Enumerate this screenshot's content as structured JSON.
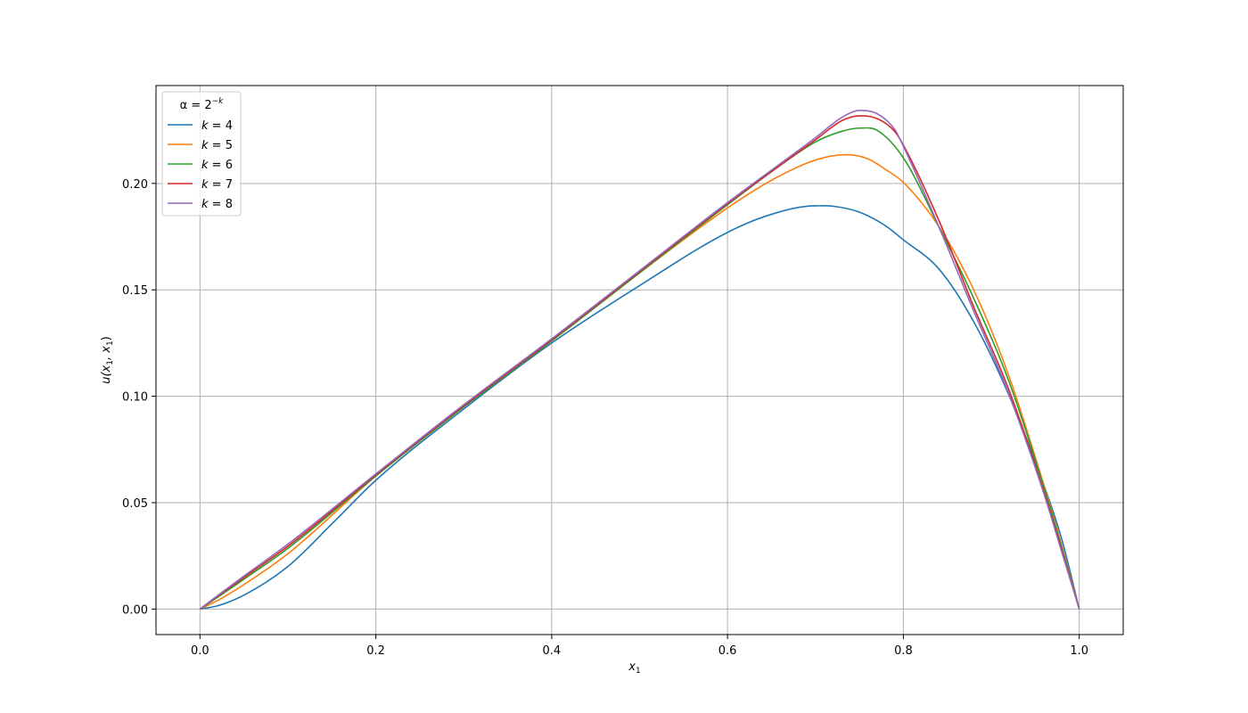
{
  "chart_data": {
    "type": "line",
    "title": "",
    "xlabel": "x",
    "xlabel_sub": "1",
    "ylabel": "u(x",
    "ylabel_sub1": "1",
    "ylabel_mid": ", x",
    "ylabel_sub2": "1",
    "ylabel_end": ")",
    "xlim": [
      -0.05,
      1.05
    ],
    "ylim": [
      -0.012,
      0.246
    ],
    "xticks": [
      0.0,
      0.2,
      0.4,
      0.6,
      0.8,
      1.0
    ],
    "xtick_labels": [
      "0.0",
      "0.2",
      "0.4",
      "0.6",
      "0.8",
      "1.0"
    ],
    "yticks": [
      0.0,
      0.05,
      0.1,
      0.15,
      0.2
    ],
    "ytick_labels": [
      "0.00",
      "0.05",
      "0.10",
      "0.15",
      "0.20"
    ],
    "grid": true,
    "legend": {
      "placement": "top-left",
      "title_prefix": "α = 2",
      "title_sup": "−k",
      "entries": [
        {
          "var": "k",
          "text": " = 4"
        },
        {
          "var": "k",
          "text": " = 5"
        },
        {
          "var": "k",
          "text": " = 6"
        },
        {
          "var": "k",
          "text": " = 7"
        },
        {
          "var": "k",
          "text": " = 8"
        }
      ]
    },
    "series": [
      {
        "color": "#1f77b4",
        "x": [
          0,
          0.02,
          0.05,
          0.1,
          0.15,
          0.2,
          0.3,
          0.4,
          0.5,
          0.6,
          0.65,
          0.7,
          0.72,
          0.75,
          0.78,
          0.8,
          0.84,
          0.88,
          0.92,
          0.96,
          0.98,
          1.0
        ],
        "y": [
          0,
          0.0015,
          0.0065,
          0.02,
          0.04,
          0.0605,
          0.094,
          0.125,
          0.152,
          0.177,
          0.1855,
          0.1895,
          0.1893,
          0.1865,
          0.18,
          0.1735,
          0.16,
          0.135,
          0.1005,
          0.058,
          0.033,
          0.0
        ]
      },
      {
        "color": "#ff7f0e",
        "x": [
          0,
          0.02,
          0.05,
          0.1,
          0.2,
          0.3,
          0.4,
          0.5,
          0.6,
          0.65,
          0.7,
          0.735,
          0.76,
          0.78,
          0.8,
          0.84,
          0.88,
          0.92,
          0.96,
          0.98,
          1.0
        ],
        "y": [
          0,
          0.004,
          0.0115,
          0.026,
          0.0625,
          0.095,
          0.126,
          0.158,
          0.1885,
          0.2015,
          0.211,
          0.2135,
          0.2115,
          0.2065,
          0.2005,
          0.18,
          0.15,
          0.1095,
          0.058,
          0.03,
          0.0
        ]
      },
      {
        "color": "#2ca02c",
        "x": [
          0,
          0.02,
          0.05,
          0.1,
          0.2,
          0.3,
          0.4,
          0.5,
          0.6,
          0.65,
          0.7,
          0.73,
          0.75,
          0.77,
          0.8,
          0.84,
          0.88,
          0.92,
          0.96,
          0.98,
          1.0
        ],
        "y": [
          0,
          0.0055,
          0.014,
          0.0285,
          0.0625,
          0.095,
          0.126,
          0.158,
          0.19,
          0.2055,
          0.2195,
          0.2245,
          0.226,
          0.225,
          0.212,
          0.18,
          0.146,
          0.107,
          0.057,
          0.029,
          0.0
        ]
      },
      {
        "color": "#d62728",
        "x": [
          0,
          0.02,
          0.05,
          0.1,
          0.2,
          0.3,
          0.4,
          0.5,
          0.6,
          0.7,
          0.73,
          0.75,
          0.77,
          0.79,
          0.8,
          0.84,
          0.88,
          0.92,
          0.96,
          0.98,
          1.0
        ],
        "y": [
          0,
          0.006,
          0.0148,
          0.0295,
          0.063,
          0.0955,
          0.1265,
          0.1585,
          0.1905,
          0.2205,
          0.2295,
          0.2318,
          0.2305,
          0.2245,
          0.218,
          0.183,
          0.142,
          0.103,
          0.055,
          0.028,
          0.0
        ]
      },
      {
        "color": "#9467bd",
        "x": [
          0,
          0.02,
          0.05,
          0.1,
          0.2,
          0.3,
          0.4,
          0.5,
          0.6,
          0.7,
          0.73,
          0.75,
          0.77,
          0.79,
          0.8,
          0.84,
          0.88,
          0.92,
          0.96,
          0.98,
          1.0
        ],
        "y": [
          0,
          0.0063,
          0.0155,
          0.0305,
          0.0635,
          0.096,
          0.127,
          0.159,
          0.191,
          0.2215,
          0.231,
          0.2343,
          0.2328,
          0.2255,
          0.2175,
          0.18,
          0.14,
          0.101,
          0.054,
          0.027,
          0.0
        ]
      }
    ]
  }
}
